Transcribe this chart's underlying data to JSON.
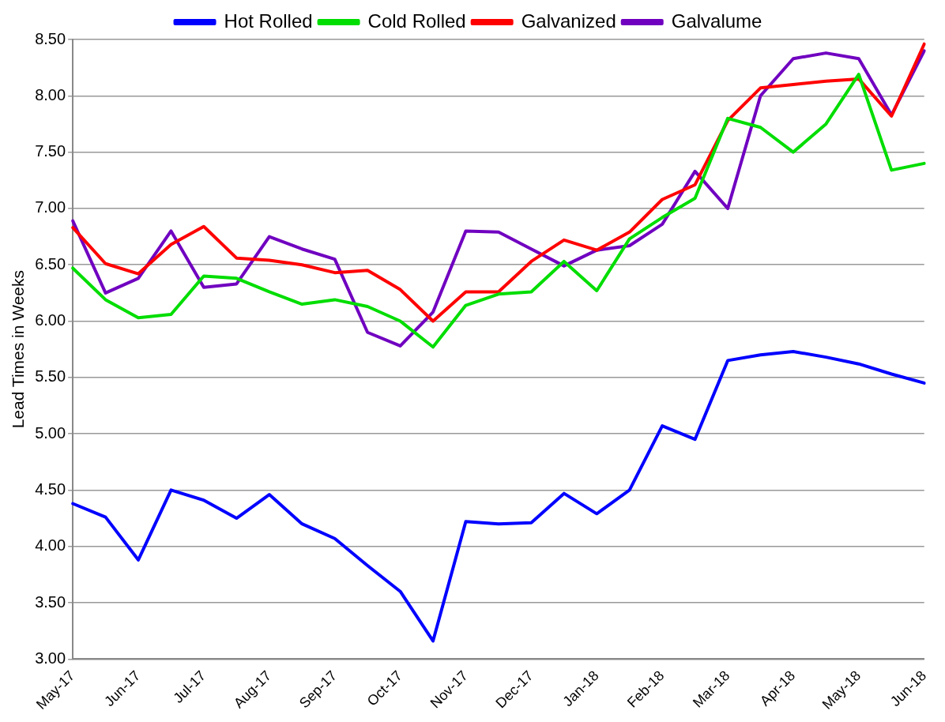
{
  "chart_data": {
    "type": "line",
    "ylabel": "Lead Times in Weeks",
    "categories": [
      "May-17",
      null,
      "Jun-17",
      null,
      "Jul-17",
      null,
      "Aug-17",
      null,
      "Sep-17",
      null,
      "Oct-17",
      null,
      "Nov-17",
      null,
      "Dec-17",
      null,
      "Jan-18",
      null,
      "Feb-18",
      null,
      "Mar-18",
      null,
      "Apr-18",
      null,
      "May-18",
      null,
      "Jun-18"
    ],
    "series": [
      {
        "name": "Hot Rolled",
        "color": "#0000ff",
        "values": [
          4.38,
          4.26,
          3.88,
          4.5,
          4.41,
          4.25,
          4.46,
          4.2,
          4.07,
          3.83,
          3.6,
          3.16,
          4.22,
          4.2,
          4.21,
          4.47,
          4.29,
          4.5,
          5.07,
          4.95,
          5.65,
          5.7,
          5.73,
          5.68,
          5.62,
          5.53,
          5.45
        ]
      },
      {
        "name": "Cold Rolled",
        "color": "#00dd00",
        "values": [
          6.47,
          6.19,
          6.03,
          6.06,
          6.4,
          6.38,
          6.26,
          6.15,
          6.19,
          6.13,
          6.0,
          5.77,
          6.14,
          6.24,
          6.26,
          6.53,
          6.27,
          6.73,
          6.92,
          7.09,
          7.8,
          7.72,
          7.5,
          7.75,
          8.19,
          7.34,
          7.4
        ]
      },
      {
        "name": "Galvanized",
        "color": "#ff0000",
        "values": [
          6.83,
          6.51,
          6.42,
          6.68,
          6.84,
          6.56,
          6.54,
          6.5,
          6.43,
          6.45,
          6.28,
          6.0,
          6.26,
          6.26,
          6.53,
          6.72,
          6.63,
          6.79,
          7.08,
          7.21,
          7.78,
          8.07,
          8.1,
          8.13,
          8.15,
          7.82,
          8.46
        ]
      },
      {
        "name": "Galvalume",
        "color": "#7000c0",
        "values": [
          6.89,
          6.25,
          6.38,
          6.8,
          6.3,
          6.33,
          6.75,
          6.64,
          6.55,
          5.9,
          5.78,
          6.08,
          6.8,
          6.79,
          6.64,
          6.49,
          6.63,
          6.67,
          6.86,
          7.33,
          7.0,
          8.0,
          8.33,
          8.38,
          8.33,
          7.83,
          8.4
        ]
      }
    ],
    "ylim": [
      3,
      8.5
    ],
    "yticks": [
      {
        "value": 3,
        "label": "3.00"
      },
      {
        "value": 3.5,
        "label": "3.50"
      },
      {
        "value": 4,
        "label": "4.00"
      },
      {
        "value": 4.5,
        "label": "4.50"
      },
      {
        "value": 5,
        "label": "5.00"
      },
      {
        "value": 5.5,
        "label": "5.50"
      },
      {
        "value": 6,
        "label": "6.00"
      },
      {
        "value": 6.5,
        "label": "6.50"
      },
      {
        "value": 7,
        "label": "7.00"
      },
      {
        "value": 7.5,
        "label": "7.50"
      },
      {
        "value": 8,
        "label": "8.00"
      },
      {
        "value": 8.5,
        "label": "8.50"
      }
    ],
    "grid": "y",
    "legend": "top",
    "marker": "none",
    "line_style": "solid"
  }
}
